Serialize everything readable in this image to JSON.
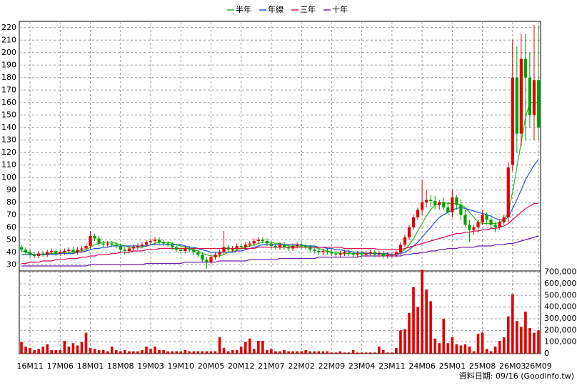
{
  "chart_data": {
    "type": "candlestick",
    "categories": [
      null,
      null,
      "16M11",
      null,
      null,
      null,
      null,
      null,
      null,
      "17M06",
      null,
      null,
      null,
      null,
      null,
      null,
      "18M01",
      null,
      null,
      null,
      null,
      null,
      null,
      "18M08",
      null,
      null,
      null,
      null,
      null,
      null,
      "19M03",
      null,
      null,
      null,
      null,
      null,
      null,
      "19M10",
      null,
      null,
      null,
      null,
      null,
      null,
      "20M05",
      null,
      null,
      null,
      null,
      null,
      null,
      "20M12",
      null,
      null,
      null,
      null,
      null,
      null,
      "21M07",
      null,
      null,
      null,
      null,
      null,
      null,
      "22M02",
      null,
      null,
      null,
      null,
      null,
      null,
      "22M09",
      null,
      null,
      null,
      null,
      null,
      null,
      "23M04",
      null,
      null,
      null,
      null,
      null,
      null,
      "23M11",
      null,
      null,
      null,
      null,
      null,
      null,
      "24M06",
      null,
      null,
      null,
      null,
      null,
      null,
      "25M01",
      null,
      null,
      null,
      null,
      null,
      null,
      "25M08",
      null,
      null,
      null,
      null,
      null,
      null,
      "26M03",
      null,
      null,
      null,
      null,
      null,
      "26M09"
    ],
    "open": [
      44,
      42,
      40,
      38,
      37,
      39,
      38,
      40,
      41,
      39,
      40,
      41,
      42,
      40,
      42,
      43,
      45,
      53,
      51,
      47,
      46,
      47,
      46,
      45,
      42,
      41,
      43,
      44,
      45,
      46,
      48,
      49,
      50,
      48,
      47,
      46,
      44,
      42,
      41,
      43,
      42,
      40,
      38,
      34,
      32,
      36,
      38,
      40,
      44,
      42,
      43,
      45,
      44,
      46,
      47,
      49,
      50,
      49,
      47,
      45,
      44,
      46,
      44,
      43,
      45,
      46,
      45,
      44,
      42,
      41,
      40,
      41,
      40,
      39,
      38,
      39,
      40,
      39,
      38,
      39,
      38,
      39,
      40,
      38,
      39,
      37,
      38,
      38,
      40,
      46,
      52,
      60,
      68,
      74,
      80,
      82,
      81,
      78,
      80,
      76,
      72,
      84,
      78,
      70,
      62,
      58,
      60,
      64,
      70,
      66,
      62,
      60,
      64,
      68,
      110,
      180,
      135,
      195,
      180,
      150,
      178
    ],
    "high": [
      46,
      44,
      42,
      40,
      41,
      41,
      42,
      43,
      43,
      42,
      43,
      44,
      44,
      44,
      45,
      47,
      57,
      55,
      53,
      49,
      49,
      49,
      48,
      47,
      44,
      45,
      46,
      47,
      48,
      50,
      51,
      52,
      52,
      50,
      49,
      48,
      46,
      44,
      45,
      45,
      44,
      42,
      40,
      36,
      38,
      40,
      42,
      57,
      46,
      45,
      47,
      47,
      48,
      49,
      51,
      52,
      52,
      51,
      49,
      47,
      48,
      48,
      46,
      47,
      48,
      48,
      47,
      46,
      44,
      43,
      43,
      43,
      42,
      41,
      41,
      42,
      42,
      41,
      41,
      41,
      41,
      42,
      42,
      41,
      41,
      40,
      40,
      42,
      48,
      54,
      62,
      70,
      76,
      98,
      90,
      86,
      85,
      82,
      84,
      80,
      90,
      86,
      82,
      74,
      66,
      62,
      66,
      74,
      72,
      68,
      64,
      66,
      70,
      112,
      210,
      205,
      215,
      215,
      200,
      222,
      222
    ],
    "low": [
      40,
      38,
      36,
      35,
      35,
      36,
      36,
      38,
      37,
      37,
      38,
      39,
      38,
      38,
      40,
      41,
      43,
      49,
      45,
      44,
      44,
      44,
      43,
      40,
      38,
      39,
      41,
      42,
      43,
      44,
      46,
      47,
      46,
      45,
      44,
      42,
      40,
      39,
      39,
      40,
      38,
      36,
      32,
      27,
      30,
      34,
      36,
      38,
      40,
      40,
      41,
      42,
      42,
      44,
      45,
      47,
      47,
      45,
      43,
      42,
      42,
      42,
      41,
      41,
      43,
      43,
      42,
      40,
      39,
      38,
      38,
      38,
      37,
      36,
      36,
      37,
      37,
      36,
      36,
      36,
      36,
      37,
      36,
      36,
      35,
      35,
      36,
      36,
      38,
      44,
      50,
      58,
      66,
      70,
      76,
      76,
      74,
      74,
      74,
      70,
      68,
      74,
      66,
      60,
      48,
      54,
      56,
      62,
      62,
      58,
      56,
      58,
      62,
      64,
      105,
      120,
      125,
      130,
      140,
      130,
      130
    ],
    "close": [
      42,
      40,
      38,
      37,
      39,
      38,
      40,
      41,
      39,
      40,
      41,
      42,
      40,
      42,
      43,
      45,
      53,
      51,
      47,
      46,
      47,
      46,
      45,
      42,
      41,
      43,
      44,
      45,
      46,
      48,
      49,
      50,
      48,
      47,
      46,
      44,
      42,
      41,
      43,
      42,
      40,
      38,
      34,
      32,
      36,
      38,
      40,
      44,
      42,
      43,
      45,
      44,
      46,
      47,
      49,
      50,
      49,
      47,
      45,
      44,
      46,
      44,
      43,
      45,
      46,
      45,
      44,
      42,
      41,
      40,
      41,
      40,
      39,
      38,
      39,
      40,
      39,
      38,
      39,
      38,
      39,
      40,
      38,
      39,
      37,
      38,
      38,
      40,
      46,
      52,
      60,
      68,
      74,
      80,
      82,
      81,
      78,
      80,
      76,
      72,
      84,
      78,
      70,
      62,
      58,
      60,
      64,
      70,
      66,
      62,
      60,
      64,
      68,
      108,
      180,
      135,
      195,
      180,
      150,
      178,
      140
    ],
    "up_color": "#e00000",
    "down_color": "#00a000",
    "series": [
      {
        "name": "半年",
        "color": "#22bb22",
        "values": [
          41,
          40,
          39,
          38,
          38,
          38,
          39,
          39,
          39,
          39,
          40,
          40,
          40,
          41,
          41,
          42,
          44,
          46,
          47,
          48,
          48,
          48,
          47,
          46,
          45,
          44,
          44,
          44,
          44,
          45,
          46,
          47,
          48,
          48,
          48,
          47,
          46,
          45,
          44,
          43,
          42,
          41,
          39,
          38,
          37,
          37,
          37,
          38,
          40,
          41,
          42,
          43,
          44,
          45,
          46,
          47,
          48,
          48,
          48,
          47,
          47,
          46,
          45,
          45,
          45,
          45,
          45,
          45,
          44,
          43,
          42,
          41,
          40,
          40,
          39,
          39,
          39,
          39,
          39,
          39,
          39,
          39,
          39,
          39,
          38,
          38,
          38,
          38,
          40,
          42,
          46,
          51,
          57,
          63,
          69,
          74,
          78,
          79,
          80,
          79,
          79,
          79,
          78,
          76,
          72,
          68,
          64,
          63,
          63,
          63,
          63,
          64,
          66,
          72,
          88,
          108,
          128,
          148,
          160,
          160,
          160
        ]
      },
      {
        "name": "年線",
        "color": "#2255dd",
        "values": [
          38,
          38,
          38,
          38,
          38,
          38,
          38,
          38,
          38,
          39,
          39,
          39,
          39,
          40,
          40,
          41,
          42,
          43,
          43,
          44,
          44,
          45,
          45,
          45,
          45,
          45,
          45,
          45,
          45,
          45,
          46,
          46,
          46,
          46,
          46,
          46,
          46,
          46,
          45,
          44,
          44,
          43,
          42,
          41,
          40,
          40,
          40,
          40,
          40,
          40,
          41,
          41,
          42,
          43,
          44,
          45,
          46,
          46,
          46,
          46,
          46,
          46,
          46,
          46,
          46,
          46,
          45,
          45,
          45,
          44,
          44,
          43,
          43,
          42,
          42,
          41,
          41,
          40,
          40,
          40,
          39,
          39,
          39,
          39,
          39,
          39,
          38,
          38,
          39,
          40,
          42,
          45,
          48,
          52,
          56,
          60,
          64,
          68,
          70,
          72,
          74,
          75,
          76,
          75,
          74,
          73,
          72,
          71,
          70,
          69,
          67,
          66,
          66,
          68,
          75,
          82,
          90,
          98,
          104,
          110,
          114
        ]
      },
      {
        "name": "三年",
        "color": "#dd1155",
        "values": [
          31,
          31,
          32,
          32,
          32,
          33,
          33,
          33,
          34,
          34,
          34,
          35,
          35,
          35,
          36,
          36,
          37,
          37,
          38,
          38,
          38,
          39,
          39,
          40,
          40,
          40,
          41,
          41,
          41,
          42,
          42,
          42,
          43,
          43,
          43,
          43,
          43,
          43,
          43,
          43,
          43,
          43,
          43,
          43,
          43,
          43,
          43,
          43,
          43,
          43,
          43,
          43,
          43,
          43,
          43,
          44,
          44,
          44,
          44,
          44,
          44,
          44,
          44,
          44,
          44,
          44,
          44,
          44,
          44,
          44,
          44,
          44,
          44,
          44,
          44,
          43,
          43,
          43,
          43,
          43,
          43,
          43,
          43,
          42,
          42,
          42,
          42,
          42,
          42,
          43,
          44,
          45,
          46,
          47,
          48,
          49,
          50,
          51,
          52,
          53,
          54,
          55,
          55,
          56,
          56,
          57,
          57,
          58,
          58,
          59,
          59,
          60,
          61,
          63,
          66,
          69,
          72,
          75,
          77,
          79,
          79
        ]
      },
      {
        "name": "十年",
        "color": "#7722aa",
        "values": [
          29,
          29,
          29,
          29,
          29,
          29,
          29,
          29,
          29,
          29,
          29,
          29,
          29,
          29,
          29,
          29,
          30,
          30,
          30,
          30,
          30,
          30,
          30,
          30,
          30,
          30,
          30,
          30,
          30,
          31,
          31,
          31,
          31,
          31,
          31,
          31,
          31,
          31,
          32,
          32,
          32,
          32,
          32,
          32,
          32,
          32,
          33,
          33,
          33,
          33,
          33,
          33,
          33,
          34,
          34,
          34,
          34,
          34,
          34,
          34,
          35,
          35,
          35,
          35,
          35,
          35,
          35,
          35,
          35,
          36,
          36,
          36,
          36,
          36,
          36,
          36,
          36,
          36,
          36,
          37,
          37,
          37,
          37,
          37,
          37,
          37,
          37,
          37,
          37,
          38,
          38,
          39,
          39,
          40,
          40,
          41,
          41,
          42,
          42,
          43,
          43,
          43,
          44,
          44,
          44,
          44,
          45,
          45,
          45,
          45,
          46,
          46,
          46,
          47,
          47,
          48,
          49,
          50,
          51,
          52,
          53
        ]
      }
    ],
    "ylim": [
      25,
      225
    ],
    "yticks": [
      30,
      40,
      50,
      60,
      70,
      80,
      90,
      100,
      110,
      120,
      130,
      140,
      150,
      160,
      170,
      180,
      190,
      200,
      210,
      220
    ],
    "grid": true,
    "volume": {
      "color": "#e00000",
      "ylim": [
        0,
        710000
      ],
      "yticks": [
        0,
        {
          "value": 100000,
          "label": "100,000"
        },
        {
          "value": 200000,
          "label": "200,000"
        },
        {
          "value": 300000,
          "label": "300,000"
        },
        {
          "value": 400000,
          "label": "400,000"
        },
        {
          "value": 500000,
          "label": "500,000"
        },
        {
          "value": 600000,
          "label": "600,000"
        },
        {
          "value": 700000,
          "label": "700,000"
        }
      ],
      "values": [
        100000,
        60000,
        50000,
        30000,
        40000,
        60000,
        80000,
        30000,
        30000,
        30000,
        110000,
        60000,
        90000,
        70000,
        100000,
        180000,
        50000,
        40000,
        30000,
        30000,
        20000,
        60000,
        30000,
        20000,
        30000,
        20000,
        20000,
        20000,
        30000,
        60000,
        40000,
        60000,
        30000,
        30000,
        20000,
        20000,
        20000,
        20000,
        30000,
        20000,
        20000,
        20000,
        20000,
        20000,
        20000,
        20000,
        140000,
        50000,
        20000,
        30000,
        30000,
        60000,
        100000,
        130000,
        40000,
        110000,
        110000,
        30000,
        40000,
        20000,
        20000,
        30000,
        20000,
        20000,
        20000,
        20000,
        30000,
        20000,
        20000,
        20000,
        20000,
        20000,
        10000,
        10000,
        20000,
        10000,
        10000,
        30000,
        10000,
        10000,
        10000,
        10000,
        10000,
        60000,
        30000,
        10000,
        10000,
        50000,
        200000,
        210000,
        350000,
        570000,
        400000,
        720000,
        550000,
        450000,
        130000,
        90000,
        300000,
        90000,
        140000,
        80000,
        70000,
        80000,
        60000,
        20000,
        170000,
        180000,
        40000,
        20000,
        60000,
        110000,
        140000,
        320000,
        510000,
        280000,
        230000,
        360000,
        220000,
        180000,
        200000
      ]
    },
    "source": "資料日期: 09/16 (Goodinfo.tw)"
  }
}
